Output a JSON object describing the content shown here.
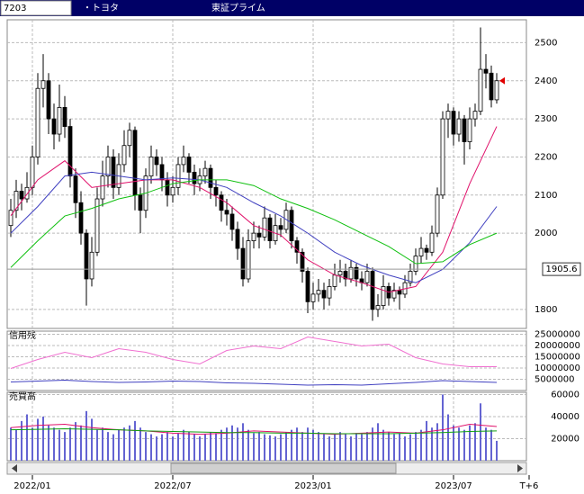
{
  "header": {
    "code": "7203",
    "name": "・トヨタ",
    "market": "東証プライム"
  },
  "chart_data": [
    {
      "type": "candlestick",
      "up_color": "#ffffff",
      "down_color": "#000000",
      "candles": [
        [
          2020,
          2090,
          1990,
          2060
        ],
        [
          2060,
          2140,
          2040,
          2110
        ],
        [
          2110,
          2130,
          2060,
          2090
        ],
        [
          2090,
          2160,
          2080,
          2120
        ],
        [
          2120,
          2230,
          2100,
          2200
        ],
        [
          2200,
          2420,
          2180,
          2380
        ],
        [
          2380,
          2470,
          2330,
          2400
        ],
        [
          2400,
          2420,
          2260,
          2300
        ],
        [
          2300,
          2340,
          2220,
          2260
        ],
        [
          2260,
          2390,
          2240,
          2330
        ],
        [
          2330,
          2360,
          2250,
          2280
        ],
        [
          2280,
          2300,
          2120,
          2150
        ],
        [
          2150,
          2170,
          2040,
          2080
        ],
        [
          2080,
          2110,
          1970,
          2000
        ],
        [
          2000,
          2010,
          1810,
          1880
        ],
        [
          1880,
          1990,
          1860,
          1950
        ],
        [
          1950,
          2120,
          1940,
          2090
        ],
        [
          2090,
          2190,
          2070,
          2150
        ],
        [
          2150,
          2230,
          2120,
          2200
        ],
        [
          2200,
          2220,
          2090,
          2120
        ],
        [
          2120,
          2210,
          2100,
          2180
        ],
        [
          2180,
          2270,
          2160,
          2230
        ],
        [
          2230,
          2290,
          2200,
          2270
        ],
        [
          2270,
          2280,
          2060,
          2100
        ],
        [
          2100,
          2120,
          2000,
          2060
        ],
        [
          2060,
          2170,
          2040,
          2150
        ],
        [
          2150,
          2230,
          2130,
          2200
        ],
        [
          2200,
          2220,
          2150,
          2180
        ],
        [
          2180,
          2200,
          2110,
          2140
        ],
        [
          2140,
          2160,
          2070,
          2100
        ],
        [
          2100,
          2150,
          2080,
          2120
        ],
        [
          2120,
          2200,
          2100,
          2180
        ],
        [
          2180,
          2230,
          2160,
          2200
        ],
        [
          2200,
          2210,
          2130,
          2160
        ],
        [
          2160,
          2180,
          2100,
          2130
        ],
        [
          2130,
          2170,
          2110,
          2150
        ],
        [
          2150,
          2190,
          2130,
          2170
        ],
        [
          2170,
          2180,
          2090,
          2120
        ],
        [
          2120,
          2140,
          2070,
          2100
        ],
        [
          2100,
          2110,
          2030,
          2060
        ],
        [
          2060,
          2090,
          2020,
          2050
        ],
        [
          2050,
          2070,
          1980,
          2010
        ],
        [
          2010,
          2030,
          1930,
          1960
        ],
        [
          1960,
          1990,
          1860,
          1880
        ],
        [
          1880,
          2010,
          1870,
          1980
        ],
        [
          1980,
          2030,
          1960,
          2000
        ],
        [
          2000,
          2020,
          1960,
          1990
        ],
        [
          1990,
          2070,
          1980,
          2040
        ],
        [
          2040,
          2050,
          1960,
          1980
        ],
        [
          1980,
          2050,
          1970,
          2020
        ],
        [
          2020,
          2040,
          1990,
          2010
        ],
        [
          2010,
          2080,
          2000,
          2060
        ],
        [
          2060,
          2070,
          1960,
          1980
        ],
        [
          1980,
          1990,
          1920,
          1950
        ],
        [
          1950,
          1960,
          1870,
          1900
        ],
        [
          1900,
          1910,
          1790,
          1820
        ],
        [
          1820,
          1870,
          1800,
          1840
        ],
        [
          1840,
          1880,
          1820,
          1850
        ],
        [
          1850,
          1870,
          1800,
          1830
        ],
        [
          1830,
          1880,
          1810,
          1860
        ],
        [
          1860,
          1920,
          1850,
          1890
        ],
        [
          1890,
          1930,
          1870,
          1900
        ],
        [
          1900,
          1920,
          1860,
          1880
        ],
        [
          1880,
          1930,
          1870,
          1910
        ],
        [
          1910,
          1920,
          1860,
          1880
        ],
        [
          1880,
          1900,
          1850,
          1870
        ],
        [
          1870,
          1920,
          1860,
          1900
        ],
        [
          1900,
          1910,
          1770,
          1800
        ],
        [
          1800,
          1840,
          1780,
          1810
        ],
        [
          1810,
          1890,
          1800,
          1860
        ],
        [
          1860,
          1870,
          1810,
          1830
        ],
        [
          1830,
          1870,
          1820,
          1850
        ],
        [
          1850,
          1860,
          1800,
          1840
        ],
        [
          1840,
          1890,
          1830,
          1870
        ],
        [
          1870,
          1920,
          1860,
          1900
        ],
        [
          1900,
          1960,
          1890,
          1940
        ],
        [
          1940,
          1990,
          1920,
          1960
        ],
        [
          1960,
          1970,
          1930,
          1950
        ],
        [
          1950,
          2020,
          1940,
          2000
        ],
        [
          2000,
          2120,
          1990,
          2100
        ],
        [
          2100,
          2320,
          2090,
          2300
        ],
        [
          2300,
          2340,
          2250,
          2320
        ],
        [
          2320,
          2330,
          2230,
          2260
        ],
        [
          2260,
          2320,
          2240,
          2300
        ],
        [
          2300,
          2310,
          2180,
          2240
        ],
        [
          2240,
          2330,
          2220,
          2300
        ],
        [
          2300,
          2340,
          2280,
          2320
        ],
        [
          2320,
          2540,
          2310,
          2430
        ],
        [
          2430,
          2470,
          2380,
          2420
        ],
        [
          2420,
          2440,
          2330,
          2350
        ],
        [
          2350,
          2420,
          2340,
          2400
        ]
      ],
      "lines": [
        {
          "color": "#e0106a",
          "x": [
            0,
            5,
            10,
            15,
            20,
            25,
            30,
            35,
            40,
            45,
            50,
            55,
            60,
            65,
            70,
            75,
            80,
            85,
            90
          ],
          "values": [
            2046,
            2140,
            2190,
            2120,
            2130,
            2140,
            2140,
            2120,
            2080,
            2020,
            1995,
            1930,
            1890,
            1870,
            1845,
            1860,
            1950,
            2130,
            2280
          ]
        },
        {
          "color": "#4040c0",
          "x": [
            0,
            5,
            10,
            15,
            20,
            25,
            30,
            35,
            40,
            45,
            50,
            55,
            60,
            65,
            70,
            75,
            80,
            85,
            90
          ],
          "values": [
            2000,
            2070,
            2150,
            2160,
            2150,
            2140,
            2145,
            2140,
            2120,
            2080,
            2045,
            2000,
            1950,
            1915,
            1890,
            1870,
            1905,
            1975,
            2070
          ]
        },
        {
          "color": "#10c010",
          "x": [
            0,
            5,
            10,
            15,
            20,
            25,
            30,
            35,
            40,
            45,
            50,
            55,
            60,
            65,
            70,
            75,
            80,
            85,
            90
          ],
          "values": [
            1910,
            1980,
            2045,
            2065,
            2090,
            2105,
            2130,
            2140,
            2140,
            2125,
            2090,
            2065,
            2035,
            2000,
            1965,
            1920,
            1925,
            1970,
            2000
          ]
        }
      ],
      "ylim": [
        1750,
        2560
      ],
      "yticks": [
        1800,
        2000,
        2100,
        2200,
        2300,
        2400,
        2500
      ],
      "marker_price": 1905.6,
      "xticks": [
        {
          "value": 4,
          "label": "2022/01"
        },
        {
          "value": 30,
          "label": "2022/07"
        },
        {
          "value": 56,
          "label": "2023/01"
        },
        {
          "value": 82,
          "label": "2023/07"
        },
        {
          "value": 96,
          "label": "T+6"
        }
      ],
      "grid": true
    },
    {
      "type": "line",
      "title": "信用残",
      "series": [
        {
          "color": "#f070d0",
          "x": [
            0,
            5,
            10,
            15,
            20,
            25,
            30,
            35,
            40,
            45,
            50,
            55,
            60,
            65,
            70,
            75,
            80,
            85,
            90
          ],
          "values": [
            9800000,
            13800000,
            17000000,
            14600000,
            18600000,
            17000000,
            13800000,
            11800000,
            17800000,
            19800000,
            18600000,
            23800000,
            21800000,
            19800000,
            20600000,
            14600000,
            11800000,
            10600000,
            10600000
          ]
        },
        {
          "color": "#4040c0",
          "x": [
            0,
            5,
            10,
            15,
            20,
            25,
            30,
            35,
            40,
            45,
            50,
            55,
            60,
            65,
            70,
            75,
            80,
            85,
            90
          ],
          "values": [
            3800000,
            4200000,
            4600000,
            4000000,
            3600000,
            3800000,
            4200000,
            4000000,
            3400000,
            3200000,
            2800000,
            2400000,
            2600000,
            2400000,
            3000000,
            3600000,
            4400000,
            4000000,
            3600000
          ]
        }
      ],
      "ylim": [
        0,
        26400000
      ],
      "yticks": [
        5000000,
        10000000,
        15000000,
        20000000,
        25000000
      ],
      "grid": true
    },
    {
      "type": "bar",
      "title": "売買高",
      "color": "#6464d2",
      "values": [
        30000,
        28000,
        36000,
        42000,
        30000,
        38000,
        40000,
        32000,
        30000,
        28000,
        26000,
        30000,
        35000,
        32000,
        45000,
        38000,
        28000,
        30000,
        26000,
        24000,
        28000,
        30000,
        32000,
        36000,
        30000,
        26000,
        24000,
        22000,
        24000,
        26000,
        22000,
        25000,
        28000,
        26000,
        24000,
        22000,
        24000,
        26000,
        25000,
        28000,
        30000,
        32000,
        30000,
        34000,
        28000,
        25000,
        26000,
        24000,
        23000,
        22000,
        24000,
        26000,
        28000,
        30000,
        26000,
        30000,
        28000,
        26000,
        24000,
        22000,
        24000,
        26000,
        24000,
        22000,
        25000,
        24000,
        26000,
        30000,
        34000,
        28000,
        26000,
        24000,
        25000,
        22000,
        24000,
        26000,
        28000,
        36000,
        30000,
        34000,
        60000,
        42000,
        32000,
        30000,
        28000,
        32000,
        34000,
        52000,
        30000,
        28000,
        18000
      ],
      "series": [
        {
          "color": "#e0106a",
          "x": [
            0,
            5,
            10,
            15,
            20,
            25,
            30,
            35,
            40,
            45,
            50,
            55,
            60,
            65,
            70,
            75,
            80,
            85,
            90
          ],
          "values": [
            30000,
            32000,
            33000,
            30000,
            28000,
            27000,
            25000,
            24000,
            25000,
            27000,
            26000,
            25000,
            24000,
            25000,
            26000,
            25000,
            28000,
            33000,
            31000
          ]
        },
        {
          "color": "#10a010",
          "x": [
            0,
            5,
            10,
            15,
            20,
            25,
            30,
            35,
            40,
            45,
            50,
            55,
            60,
            65,
            70,
            75,
            80,
            85,
            90
          ],
          "values": [
            28000,
            28500,
            29000,
            28500,
            28000,
            27000,
            26500,
            26000,
            25500,
            25500,
            25000,
            25000,
            24500,
            24500,
            24500,
            25000,
            25500,
            26500,
            27000
          ]
        }
      ],
      "ylim": [
        0,
        62000
      ],
      "yticks": [
        20000,
        40000,
        60000
      ],
      "grid": true
    }
  ]
}
